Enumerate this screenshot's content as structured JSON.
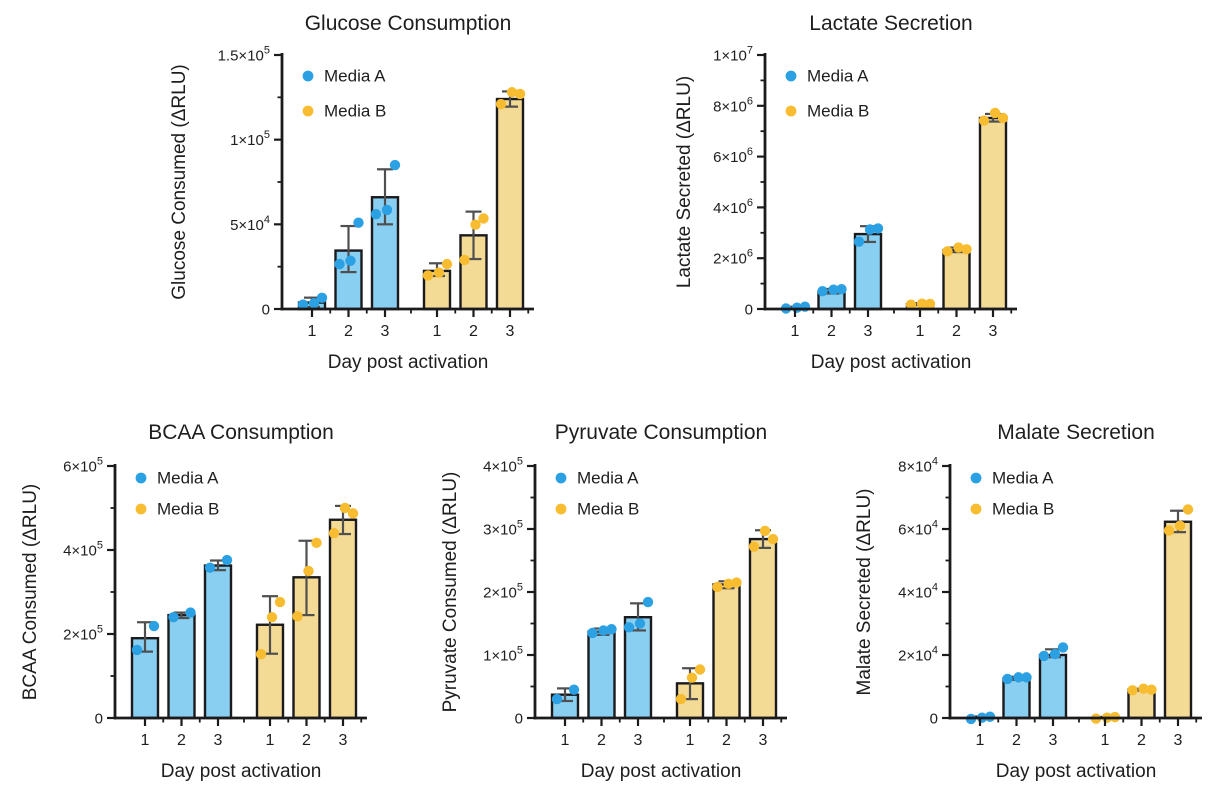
{
  "figure": {
    "background": "#ffffff",
    "text_color": "#1e1e20",
    "axis_color": "#1b1b1d",
    "error_bar_color": "#4f4f4f",
    "media_a": {
      "label": "Media A",
      "point_color": "#2BA1E4",
      "bar_fill": "#89CFF1"
    },
    "media_b": {
      "label": "Media B",
      "point_color": "#F7BC30",
      "bar_fill": "#F4DB95"
    }
  },
  "chart_data": [
    {
      "type": "bar",
      "title": "Glucose Consumption",
      "xlabel": "Day post activation",
      "ylabel": "Glucose Consumed (ΔRLU)",
      "ylim": [
        0,
        150000
      ],
      "grid": false,
      "legend_position": "top-left-inside",
      "yticks": [
        {
          "v": 0,
          "label": "0"
        },
        {
          "v": 50000,
          "label": "5×10^4"
        },
        {
          "v": 100000,
          "label": "1×10^5"
        },
        {
          "v": 150000,
          "label": "1.5×10^5"
        }
      ],
      "categories": [
        "1",
        "2",
        "3",
        "1",
        "2",
        "3"
      ],
      "series": [
        {
          "name": "Media A",
          "point_color": "#2BA1E4",
          "bar_fill": "#89CFF1",
          "bars": [
            {
              "mean": 3800,
              "lo": 1200,
              "hi": 6700,
              "points": [
                2600,
                3400,
                6600
              ]
            },
            {
              "mean": 34500,
              "lo": 21800,
              "hi": 49000,
              "points": [
                26500,
                28500,
                51000
              ]
            },
            {
              "mean": 66000,
              "lo": 50000,
              "hi": 82500,
              "points": [
                56000,
                58500,
                85000
              ]
            }
          ]
        },
        {
          "name": "Media B",
          "point_color": "#F7BC30",
          "bar_fill": "#F4DB95",
          "bars": [
            {
              "mean": 22500,
              "lo": 19500,
              "hi": 27000,
              "points": [
                19800,
                21500,
                26500
              ]
            },
            {
              "mean": 43500,
              "lo": 29500,
              "hi": 57500,
              "points": [
                29000,
                49800,
                53500
              ]
            },
            {
              "mean": 124000,
              "lo": 119500,
              "hi": 128500,
              "points": [
                121000,
                128000,
                127000
              ]
            }
          ]
        }
      ]
    },
    {
      "type": "bar",
      "title": "Lactate Secretion",
      "xlabel": "Day post activation",
      "ylabel": "Lactate Secreted (ΔRLU)",
      "ylim": [
        0,
        10000000
      ],
      "grid": false,
      "legend_position": "top-left-inside",
      "yticks": [
        {
          "v": 0,
          "label": "0"
        },
        {
          "v": 2000000,
          "label": "2×10^6"
        },
        {
          "v": 4000000,
          "label": "4×10^6"
        },
        {
          "v": 6000000,
          "label": "6×10^6"
        },
        {
          "v": 8000000,
          "label": "8×10^6"
        },
        {
          "v": 10000000,
          "label": "1×10^7"
        }
      ],
      "categories": [
        "1",
        "2",
        "3",
        "1",
        "2",
        "3"
      ],
      "series": [
        {
          "name": "Media A",
          "point_color": "#2BA1E4",
          "bar_fill": "#89CFF1",
          "bars": [
            {
              "mean": 50000,
              "lo": 20000,
              "hi": 90000,
              "points": [
                20000,
                50000,
                90000
              ]
            },
            {
              "mean": 680000,
              "lo": 610000,
              "hi": 790000,
              "points": [
                700000,
                760000,
                780000
              ]
            },
            {
              "mean": 2950000,
              "lo": 2640000,
              "hi": 3260000,
              "points": [
                2650000,
                3130000,
                3170000
              ]
            }
          ]
        },
        {
          "name": "Media B",
          "point_color": "#F7BC30",
          "bar_fill": "#F4DB95",
          "bars": [
            {
              "mean": 190000,
              "lo": 160000,
              "hi": 230000,
              "points": [
                170000,
                210000,
                200000
              ]
            },
            {
              "mean": 2320000,
              "lo": 2240000,
              "hi": 2420000,
              "points": [
                2270000,
                2420000,
                2350000
              ]
            },
            {
              "mean": 7520000,
              "lo": 7380000,
              "hi": 7680000,
              "points": [
                7420000,
                7720000,
                7520000
              ]
            }
          ]
        }
      ]
    },
    {
      "type": "bar",
      "title": "BCAA Consumption",
      "xlabel": "Day post activation",
      "ylabel": "BCAA Consumed (ΔRLU)",
      "ylim": [
        0,
        600000
      ],
      "grid": false,
      "legend_position": "top-left-inside",
      "yticks": [
        {
          "v": 0,
          "label": "0"
        },
        {
          "v": 200000,
          "label": "2×10^5"
        },
        {
          "v": 400000,
          "label": "4×10^5"
        },
        {
          "v": 600000,
          "label": "6×10^5"
        }
      ],
      "categories": [
        "1",
        "2",
        "3",
        "1",
        "2",
        "3"
      ],
      "series": [
        {
          "name": "Media A",
          "point_color": "#2BA1E4",
          "bar_fill": "#89CFF1",
          "bars": [
            {
              "mean": 190000,
              "lo": 158000,
              "hi": 228000,
              "points": [
                162000,
                219000
              ]
            },
            {
              "mean": 245000,
              "lo": 238000,
              "hi": 251000,
              "points": [
                240000,
                251000
              ]
            },
            {
              "mean": 363000,
              "lo": 352000,
              "hi": 375000,
              "points": [
                358000,
                376000
              ]
            }
          ]
        },
        {
          "name": "Media B",
          "point_color": "#F7BC30",
          "bar_fill": "#F4DB95",
          "bars": [
            {
              "mean": 222000,
              "lo": 153000,
              "hi": 290000,
              "points": [
                152000,
                240000,
                276000
              ]
            },
            {
              "mean": 335000,
              "lo": 245000,
              "hi": 422000,
              "points": [
                242000,
                350000,
                417000
              ]
            },
            {
              "mean": 472000,
              "lo": 438000,
              "hi": 505000,
              "points": [
                440000,
                500000,
                487000
              ]
            }
          ]
        }
      ]
    },
    {
      "type": "bar",
      "title": "Pyruvate Consumption",
      "xlabel": "Day post activation",
      "ylabel": "Pyruvate Consumed (ΔRLU)",
      "ylim": [
        0,
        400000
      ],
      "grid": false,
      "legend_position": "top-left-inside",
      "yticks": [
        {
          "v": 0,
          "label": "0"
        },
        {
          "v": 100000,
          "label": "1×10^5"
        },
        {
          "v": 200000,
          "label": "2×10^5"
        },
        {
          "v": 300000,
          "label": "3×10^5"
        },
        {
          "v": 400000,
          "label": "4×10^5"
        }
      ],
      "categories": [
        "1",
        "2",
        "3",
        "1",
        "2",
        "3"
      ],
      "series": [
        {
          "name": "Media A",
          "point_color": "#2BA1E4",
          "bar_fill": "#89CFF1",
          "bars": [
            {
              "mean": 37000,
              "lo": 27000,
              "hi": 47000,
              "points": [
                30000,
                45000
              ]
            },
            {
              "mean": 137000,
              "lo": 132000,
              "hi": 142000,
              "points": [
                135000,
                139000,
                141000
              ]
            },
            {
              "mean": 160000,
              "lo": 139000,
              "hi": 182000,
              "points": [
                144000,
                150000,
                184000
              ]
            }
          ]
        },
        {
          "name": "Media B",
          "point_color": "#F7BC30",
          "bar_fill": "#F4DB95",
          "bars": [
            {
              "mean": 55000,
              "lo": 30000,
              "hi": 79000,
              "points": [
                30000,
                64000,
                77000
              ]
            },
            {
              "mean": 212000,
              "lo": 206000,
              "hi": 217000,
              "points": [
                208000,
                213000,
                215000
              ]
            },
            {
              "mean": 284000,
              "lo": 270000,
              "hi": 298000,
              "points": [
                272000,
                297000,
                284000
              ]
            }
          ]
        }
      ]
    },
    {
      "type": "bar",
      "title": "Malate Secretion",
      "xlabel": "Day post activation",
      "ylabel": "Malate Secreted (ΔRLU)",
      "ylim": [
        0,
        80000
      ],
      "grid": false,
      "legend_position": "top-left-inside",
      "yticks": [
        {
          "v": 0,
          "label": "0"
        },
        {
          "v": 20000,
          "label": "2×10^4"
        },
        {
          "v": 40000,
          "label": "4×10^4"
        },
        {
          "v": 60000,
          "label": "6×10^4"
        },
        {
          "v": 80000,
          "label": "8×10^4"
        }
      ],
      "categories": [
        "1",
        "2",
        "3",
        "1",
        "2",
        "3"
      ],
      "series": [
        {
          "name": "Media A",
          "point_color": "#2BA1E4",
          "bar_fill": "#89CFF1",
          "bars": [
            {
              "mean": 400,
              "lo": null,
              "hi": null,
              "points": [
                -300,
                100,
                400
              ]
            },
            {
              "mean": 12600,
              "lo": 12100,
              "hi": 13100,
              "points": [
                12400,
                12900,
                12900
              ]
            },
            {
              "mean": 20000,
              "lo": 19300,
              "hi": 21800,
              "points": [
                19700,
                20300,
                22400
              ]
            }
          ]
        },
        {
          "name": "Media B",
          "point_color": "#F7BC30",
          "bar_fill": "#F4DB95",
          "bars": [
            {
              "mean": 300,
              "lo": null,
              "hi": null,
              "points": [
                -200,
                100,
                300
              ]
            },
            {
              "mean": 9000,
              "lo": 8700,
              "hi": 9300,
              "points": [
                8800,
                9300,
                9000
              ]
            },
            {
              "mean": 62300,
              "lo": 59000,
              "hi": 65800,
              "points": [
                59500,
                61000,
                66200
              ]
            }
          ]
        }
      ]
    }
  ]
}
